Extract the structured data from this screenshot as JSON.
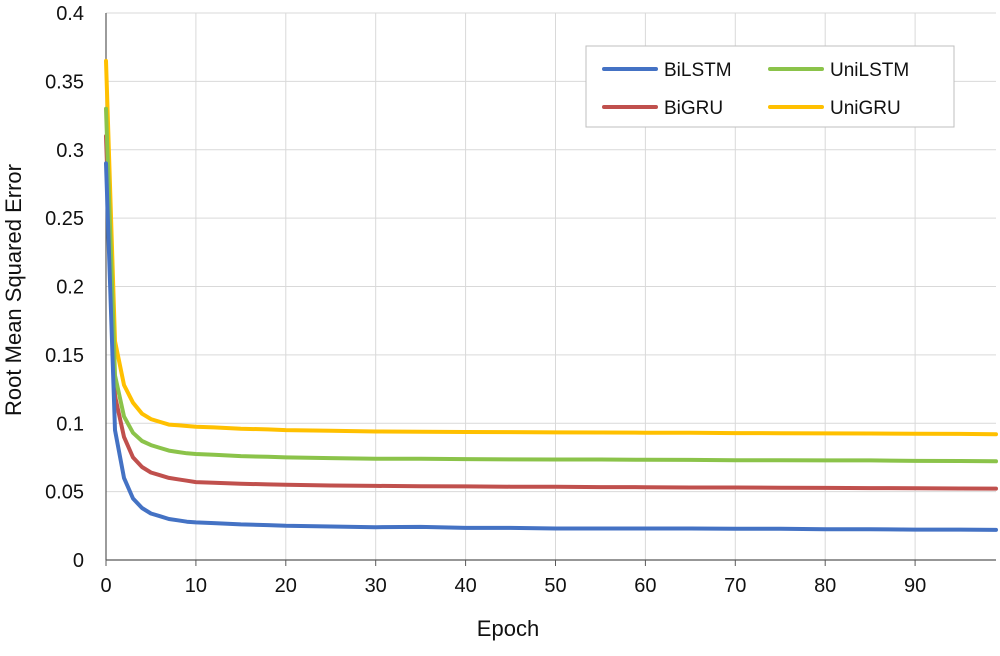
{
  "chart_data": {
    "type": "line",
    "title": "",
    "xlabel": "Epoch",
    "ylabel": "Root Mean Squared Error",
    "xlim": [
      0,
      99
    ],
    "ylim": [
      0,
      0.4
    ],
    "x_ticks": [
      0,
      10,
      20,
      30,
      40,
      50,
      60,
      70,
      80,
      90
    ],
    "y_ticks": [
      0,
      0.05,
      0.1,
      0.15,
      0.2,
      0.25,
      0.3,
      0.35,
      0.4
    ],
    "y_tick_labels": [
      "0",
      "0.05",
      "0.1",
      "0.15",
      "0.2",
      "0.25",
      "0.3",
      "0.35",
      "0.4"
    ],
    "grid": true,
    "legend_position": "top-right",
    "x": [
      0,
      1,
      2,
      3,
      4,
      5,
      6,
      7,
      8,
      9,
      10,
      12,
      15,
      18,
      20,
      25,
      30,
      35,
      40,
      45,
      50,
      55,
      60,
      65,
      70,
      75,
      80,
      85,
      90,
      95,
      99
    ],
    "series": [
      {
        "name": "BiLSTM",
        "color": "#4472C4",
        "values": [
          0.29,
          0.095,
          0.06,
          0.045,
          0.038,
          0.034,
          0.032,
          0.03,
          0.029,
          0.028,
          0.0275,
          0.027,
          0.026,
          0.0255,
          0.025,
          0.0245,
          0.024,
          0.0242,
          0.0235,
          0.0235,
          0.023,
          0.023,
          0.023,
          0.023,
          0.0228,
          0.0228,
          0.0225,
          0.0225,
          0.0222,
          0.0222,
          0.022
        ]
      },
      {
        "name": "UniLSTM",
        "color": "#8BC34A",
        "values": [
          0.33,
          0.135,
          0.105,
          0.093,
          0.087,
          0.084,
          0.082,
          0.08,
          0.079,
          0.078,
          0.0775,
          0.077,
          0.076,
          0.0755,
          0.075,
          0.0745,
          0.074,
          0.074,
          0.0738,
          0.0736,
          0.0735,
          0.0735,
          0.0733,
          0.0732,
          0.073,
          0.073,
          0.0728,
          0.0728,
          0.0725,
          0.0724,
          0.0722
        ]
      },
      {
        "name": "BiGRU",
        "color": "#C0504D",
        "values": [
          0.31,
          0.12,
          0.09,
          0.075,
          0.068,
          0.064,
          0.062,
          0.06,
          0.059,
          0.058,
          0.057,
          0.0565,
          0.0558,
          0.0553,
          0.055,
          0.0545,
          0.0542,
          0.054,
          0.0538,
          0.0536,
          0.0535,
          0.0533,
          0.0532,
          0.053,
          0.053,
          0.0528,
          0.0527,
          0.0526,
          0.0525,
          0.0523,
          0.0522
        ]
      },
      {
        "name": "UniGRU",
        "color": "#FFC000",
        "values": [
          0.365,
          0.16,
          0.128,
          0.115,
          0.107,
          0.103,
          0.101,
          0.099,
          0.0985,
          0.098,
          0.0975,
          0.097,
          0.096,
          0.0955,
          0.095,
          0.0945,
          0.094,
          0.0938,
          0.0936,
          0.0935,
          0.0933,
          0.0932,
          0.0931,
          0.093,
          0.0928,
          0.0927,
          0.0926,
          0.0925,
          0.0923,
          0.0922,
          0.092
        ]
      }
    ],
    "legend_order": [
      0,
      1,
      2,
      3
    ]
  }
}
